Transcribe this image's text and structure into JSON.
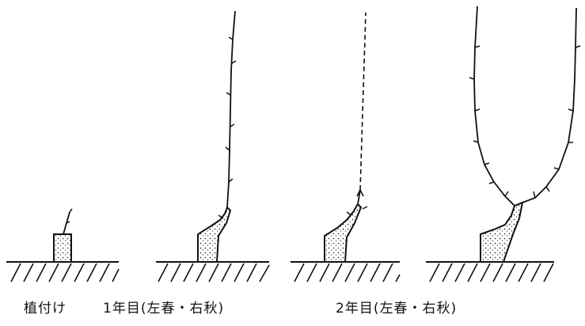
{
  "captions": {
    "planting": "植付け",
    "year1": "1年目(左春・右秋)",
    "year2": "2年目(左春・右秋)"
  },
  "colors": {
    "ink": "#111111",
    "background": "#ffffff"
  }
}
